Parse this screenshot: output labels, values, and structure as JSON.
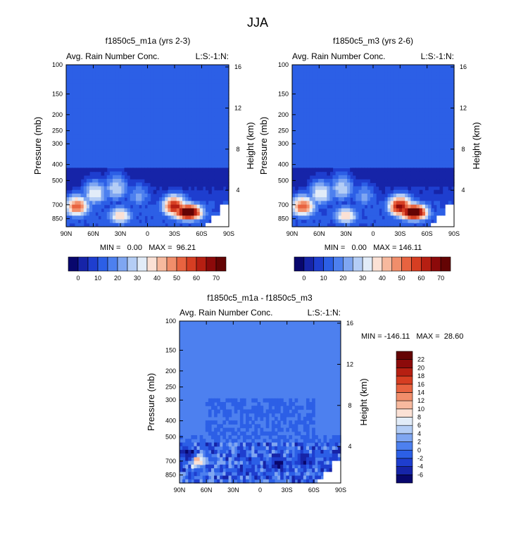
{
  "figure_title": "JJA",
  "chart_data": [
    {
      "type": "heatmap",
      "title": "f1850c5_m1a (yrs 2-3)",
      "subtitle_left": "Avg. Rain Number Conc.",
      "subtitle_right": "L:S:-1:N:",
      "ylabel": "Pressure (mb)",
      "ylabel_right": "Height (km)",
      "x_ticks": [
        "90N",
        "60N",
        "30N",
        "0",
        "30S",
        "60S",
        "90S"
      ],
      "x_range": [
        90,
        -90
      ],
      "y_ticks": [
        100,
        150,
        200,
        250,
        300,
        400,
        500,
        700,
        850
      ],
      "y_ticks_right": [
        4,
        8,
        12,
        16
      ],
      "y_range": [
        100,
        950
      ],
      "stats": "MIN =   0.00   MAX =  96.21",
      "colorbar": {
        "orientation": "horizontal",
        "levels": [
          0,
          5,
          10,
          15,
          20,
          25,
          30,
          35,
          40,
          45,
          50,
          55,
          60,
          65,
          70
        ],
        "labels": [
          "0",
          "10",
          "20",
          "30",
          "40",
          "50",
          "60",
          "70"
        ],
        "colors": [
          "#08076d",
          "#1624a8",
          "#1e3ecf",
          "#2c5fe6",
          "#4d80ef",
          "#7fa6f1",
          "#b4cdf5",
          "#e2ecf8",
          "#fbe1d5",
          "#f7b99e",
          "#f18e6b",
          "#e86340",
          "#d63e22",
          "#b61f12",
          "#8c0a0a",
          "#640404"
        ]
      },
      "features": {
        "background_level_color_index": 2,
        "blobs": [
          {
            "lat": -45,
            "p": 780,
            "value": 96.21
          },
          {
            "lat": -30,
            "p": 720,
            "value": 65
          },
          {
            "lat": 78,
            "p": 720,
            "value": 55
          },
          {
            "lat": 58,
            "p": 600,
            "value": 35
          },
          {
            "lat": 35,
            "p": 560,
            "value": 30
          },
          {
            "lat": 10,
            "p": 620,
            "value": 22
          },
          {
            "lat": 30,
            "p": 820,
            "value": 40
          }
        ]
      }
    },
    {
      "type": "heatmap",
      "title": "f1850c5_m3 (yrs 2-6)",
      "subtitle_left": "Avg. Rain Number Conc.",
      "subtitle_right": "L:S:-1:N:",
      "ylabel": "Pressure (mb)",
      "ylabel_right": "Height (km)",
      "x_ticks": [
        "90N",
        "60N",
        "30N",
        "0",
        "30S",
        "60S",
        "90S"
      ],
      "x_range": [
        90,
        -90
      ],
      "y_ticks": [
        100,
        150,
        200,
        250,
        300,
        400,
        500,
        700,
        850
      ],
      "y_ticks_right": [
        4,
        8,
        12,
        16
      ],
      "y_range": [
        100,
        950
      ],
      "stats": "MIN =   0.00   MAX = 146.11",
      "colorbar": {
        "orientation": "horizontal",
        "levels": [
          0,
          5,
          10,
          15,
          20,
          25,
          30,
          35,
          40,
          45,
          50,
          55,
          60,
          65,
          70
        ],
        "labels": [
          "0",
          "10",
          "20",
          "30",
          "40",
          "50",
          "60",
          "70"
        ],
        "colors": [
          "#08076d",
          "#1624a8",
          "#1e3ecf",
          "#2c5fe6",
          "#4d80ef",
          "#7fa6f1",
          "#b4cdf5",
          "#e2ecf8",
          "#fbe1d5",
          "#f7b99e",
          "#f18e6b",
          "#e86340",
          "#d63e22",
          "#b61f12",
          "#8c0a0a",
          "#640404"
        ]
      },
      "features": {
        "background_level_color_index": 2,
        "blobs": [
          {
            "lat": -45,
            "p": 780,
            "value": 146.11
          },
          {
            "lat": -30,
            "p": 720,
            "value": 68
          },
          {
            "lat": 78,
            "p": 720,
            "value": 55
          },
          {
            "lat": 58,
            "p": 600,
            "value": 35
          },
          {
            "lat": 35,
            "p": 560,
            "value": 30
          },
          {
            "lat": 10,
            "p": 620,
            "value": 22
          },
          {
            "lat": 30,
            "p": 820,
            "value": 40
          }
        ]
      }
    },
    {
      "type": "heatmap",
      "title": "f1850c5_m1a - f1850c5_m3",
      "subtitle_left": "Avg. Rain Number Conc.",
      "subtitle_right": "L:S:-1:N:",
      "ylabel": "Pressure (mb)",
      "ylabel_right": "Height (km)",
      "x_ticks": [
        "90N",
        "60N",
        "30N",
        "0",
        "30S",
        "60S",
        "90S"
      ],
      "x_range": [
        90,
        -90
      ],
      "y_ticks": [
        100,
        150,
        200,
        250,
        300,
        400,
        500,
        700,
        850
      ],
      "y_ticks_right": [
        4,
        8,
        12,
        16
      ],
      "y_range": [
        100,
        950
      ],
      "stats": "MIN = -146.11   MAX =  28.60",
      "colorbar": {
        "orientation": "vertical",
        "levels": [
          -6,
          -4,
          -2,
          0,
          2,
          4,
          6,
          8,
          10,
          12,
          14,
          16,
          18,
          20,
          22
        ],
        "labels": [
          "-6",
          "-4",
          "-2",
          "0",
          "2",
          "4",
          "6",
          "8",
          "10",
          "12",
          "14",
          "16",
          "18",
          "20",
          "22"
        ],
        "colors": [
          "#08076d",
          "#1624a8",
          "#1e3ecf",
          "#2c5fe6",
          "#4d80ef",
          "#7fa6f1",
          "#b4cdf5",
          "#e2ecf8",
          "#fbe1d5",
          "#f7b99e",
          "#f18e6b",
          "#e86340",
          "#d63e22",
          "#b61f12",
          "#8c0a0a",
          "#640404"
        ]
      },
      "features": {
        "background_level_color_index": 4,
        "blobs": [
          {
            "lat": -20,
            "p": 720,
            "value": -6
          },
          {
            "lat": -50,
            "p": 700,
            "value": -6
          },
          {
            "lat": 70,
            "p": 700,
            "value": 10
          },
          {
            "lat": 82,
            "p": 640,
            "value": -6
          },
          {
            "lat": 10,
            "p": 760,
            "value": -2
          }
        ]
      }
    }
  ]
}
